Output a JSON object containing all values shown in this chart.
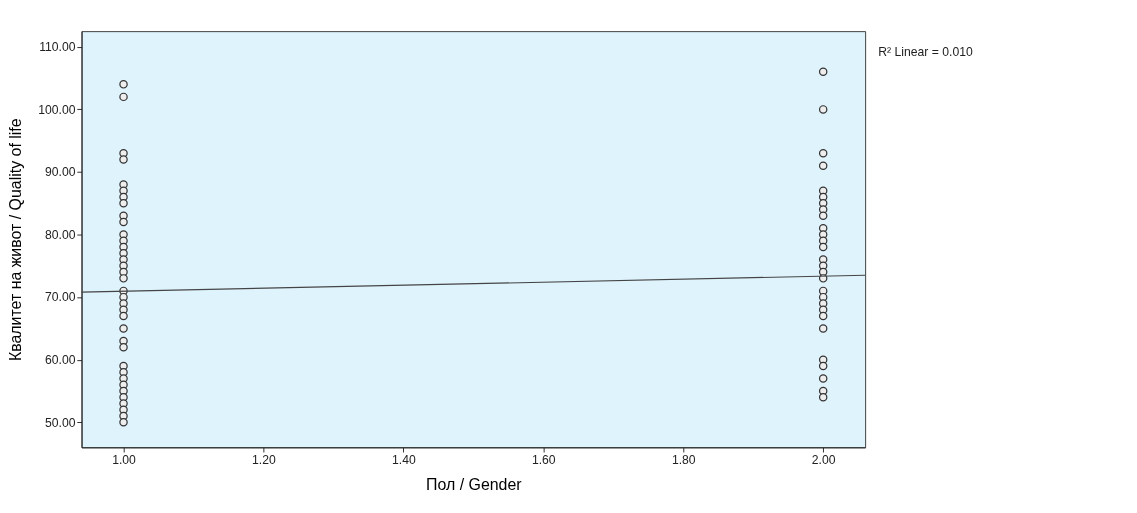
{
  "chart_data": {
    "type": "scatter",
    "xlabel": "Пол / Gender",
    "ylabel": "Квалитет на живот / Quality of life",
    "annotations": [
      "R² Linear = 0.010"
    ],
    "xlim": [
      0.94,
      2.06
    ],
    "ylim": [
      46,
      112.5
    ],
    "xticks": [
      {
        "value": 1,
        "label": "1.00"
      },
      {
        "value": 1.2,
        "label": "1.20"
      },
      {
        "value": 1.4,
        "label": "1.40"
      },
      {
        "value": 1.6,
        "label": "1.60"
      },
      {
        "value": 1.8,
        "label": "1.80"
      },
      {
        "value": 2,
        "label": "2.00"
      }
    ],
    "yticks": [
      {
        "value": 50,
        "label": "50.00"
      },
      {
        "value": 60,
        "label": "60.00"
      },
      {
        "value": 70,
        "label": "70.00"
      },
      {
        "value": 80,
        "label": "80.00"
      },
      {
        "value": 90,
        "label": "90.00"
      },
      {
        "value": 100,
        "label": "100.00"
      },
      {
        "value": 110,
        "label": "110.00"
      }
    ],
    "grid": false,
    "legend": false,
    "marker": "circle",
    "series": [
      {
        "color": "#333333",
        "x": [
          1,
          1,
          1,
          1,
          1,
          1,
          1,
          1,
          1,
          1,
          1,
          1,
          1,
          1,
          1,
          1,
          1,
          1,
          1,
          1,
          1,
          1,
          1,
          1,
          1,
          1,
          1,
          1,
          1,
          1,
          1,
          1,
          1,
          1,
          1,
          1
        ],
        "values": [
          104,
          102,
          93,
          92,
          88,
          87,
          86,
          85,
          83,
          82,
          80,
          79,
          78,
          77,
          76,
          75,
          74,
          73,
          71,
          70,
          69,
          68,
          67,
          65,
          63,
          62,
          59,
          58,
          57,
          56,
          55,
          54,
          53,
          52,
          51,
          50
        ]
      },
      {
        "color": "#333333",
        "x": [
          2,
          2,
          2,
          2,
          2,
          2,
          2,
          2,
          2,
          2,
          2,
          2,
          2,
          2,
          2,
          2,
          2,
          2,
          2,
          2,
          2,
          2,
          2,
          2,
          2,
          2,
          2,
          2
        ],
        "values": [
          106,
          100,
          93,
          91,
          87,
          86,
          85,
          84,
          83,
          81,
          80,
          79,
          78,
          76,
          75,
          74,
          73,
          71,
          70,
          69,
          68,
          67,
          65,
          60,
          59,
          57,
          55,
          54
        ]
      },
      {
        "type": "line",
        "color": "#444444",
        "line_style": "solid",
        "marker": "none",
        "x": [
          0.94,
          2.06
        ],
        "values": [
          70.8,
          73.5
        ]
      }
    ]
  }
}
